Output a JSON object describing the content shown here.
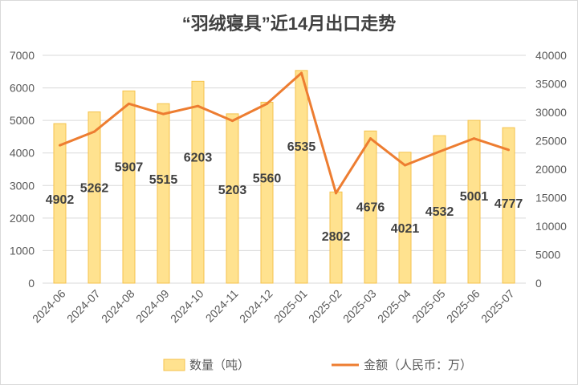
{
  "chart_data": {
    "type": "bar+line",
    "title": "“羽绒寝具”近14月出口走势",
    "categories": [
      "2024-06",
      "2024-07",
      "2024-08",
      "2024-09",
      "2024-10",
      "2024-11",
      "2024-12",
      "2025-01",
      "2025-02",
      "2025-03",
      "2025-04",
      "2025-05",
      "2025-06",
      "2025-07"
    ],
    "series": [
      {
        "name": "数量（吨）",
        "type": "bar",
        "axis": "left",
        "values": [
          4902,
          5262,
          5907,
          5515,
          6203,
          5203,
          5560,
          6535,
          2802,
          4676,
          4021,
          4532,
          5001,
          4777
        ]
      },
      {
        "name": "金额（人民币：万）",
        "type": "line",
        "axis": "right",
        "values": [
          24200,
          26600,
          31500,
          29700,
          31100,
          28500,
          31500,
          36900,
          15800,
          25400,
          20700,
          23100,
          25400,
          23400
        ]
      }
    ],
    "left_axis": {
      "ylim": [
        0,
        7000
      ],
      "ticks": [
        "0",
        "1000",
        "2000",
        "3000",
        "4000",
        "5000",
        "6000",
        "7000"
      ]
    },
    "right_axis": {
      "ylim": [
        0,
        40000
      ],
      "ticks": [
        "0",
        "5000",
        "10000",
        "15000",
        "20000",
        "25000",
        "30000",
        "35000",
        "40000"
      ]
    },
    "grid": true,
    "legend": "bottom",
    "colors": {
      "bar_fill": "#FFE28F",
      "bar_stroke": "#F4C24C",
      "line": "#ED7D31",
      "grid": "#d9d9d9",
      "text": "#595959"
    }
  }
}
